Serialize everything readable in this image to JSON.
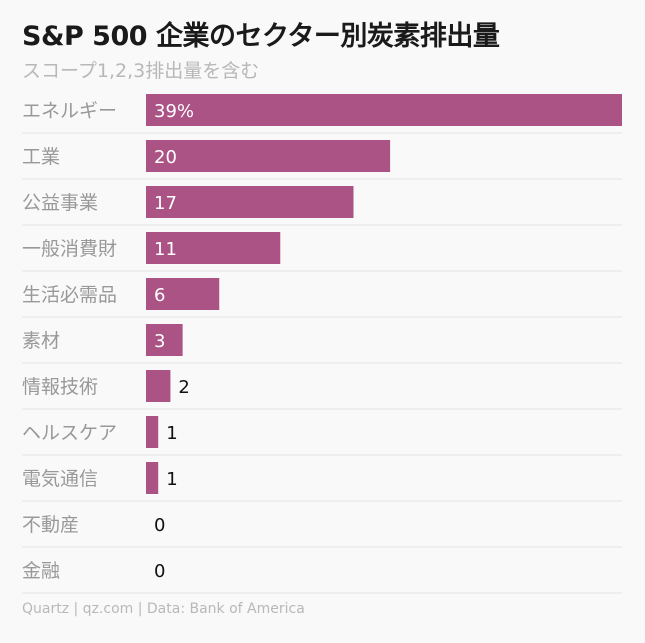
{
  "title": "S&P 500 企業のセクター別炭素排出量",
  "subtitle": "スコープ1,2,3排出量を含む",
  "footer": "Quartz | qz.com | Data: Bank of America",
  "colors": {
    "bar": "#ab5385",
    "label": "#999999",
    "value_inside": "#ffffff",
    "value_outside": "#111111",
    "gridline": "#e2e2e2"
  },
  "chart_data": {
    "type": "bar",
    "orientation": "horizontal",
    "categories": [
      "エネルギー",
      "工業",
      "公益事業",
      "一般消費財",
      "生活必需品",
      "素材",
      "情報技術",
      "ヘルスケア",
      "電気通信",
      "不動産",
      "金融"
    ],
    "values": [
      39,
      20,
      17,
      11,
      6,
      3,
      2,
      1,
      1,
      0,
      0
    ],
    "data_labels": [
      "39%",
      "20",
      "17",
      "11",
      "6",
      "3",
      "2",
      "1",
      "1",
      "0",
      "0"
    ],
    "unit": "%",
    "xlim": [
      0,
      39
    ],
    "grid": false,
    "legend": "none"
  }
}
